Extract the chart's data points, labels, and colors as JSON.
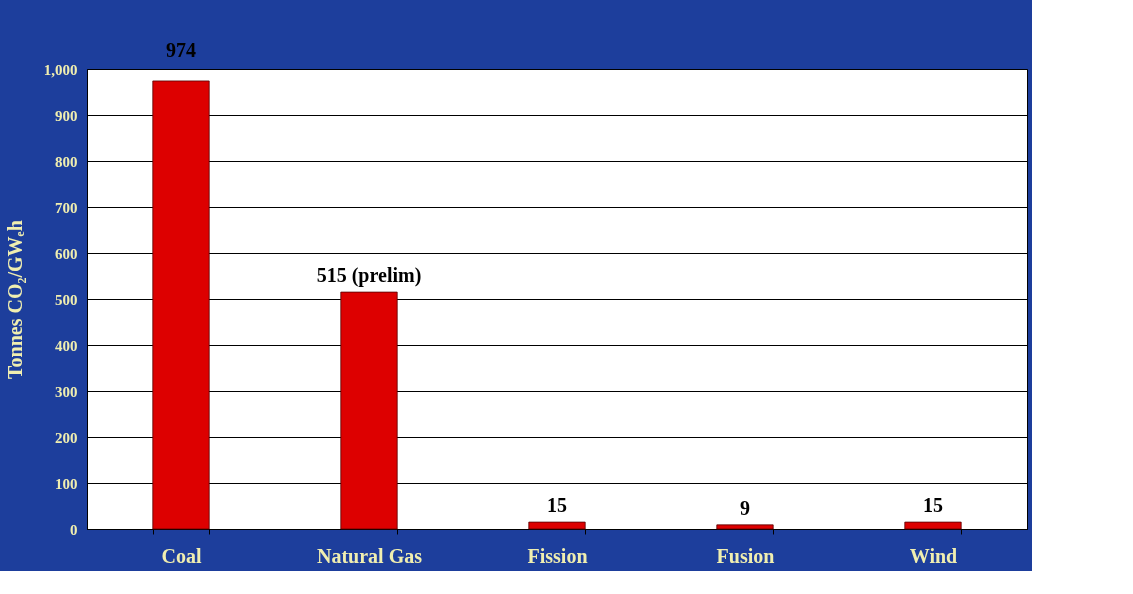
{
  "chart_data": {
    "type": "bar",
    "ylabel": "Tonnes CO₂/GWₑh",
    "categories": [
      "Coal",
      "Natural Gas",
      "Fission",
      "Fusion",
      "Wind"
    ],
    "values": [
      974,
      515,
      15,
      9,
      15
    ],
    "value_labels": [
      "974",
      "515 (prelim)",
      "15",
      "9",
      "15"
    ],
    "color": "#dd0000",
    "ylim": [
      0,
      1000
    ],
    "yticks": [
      0,
      100,
      200,
      300,
      400,
      500,
      600,
      700,
      800,
      900,
      {
        "value": 1000,
        "label": "1,000"
      }
    ],
    "grid": "y"
  }
}
